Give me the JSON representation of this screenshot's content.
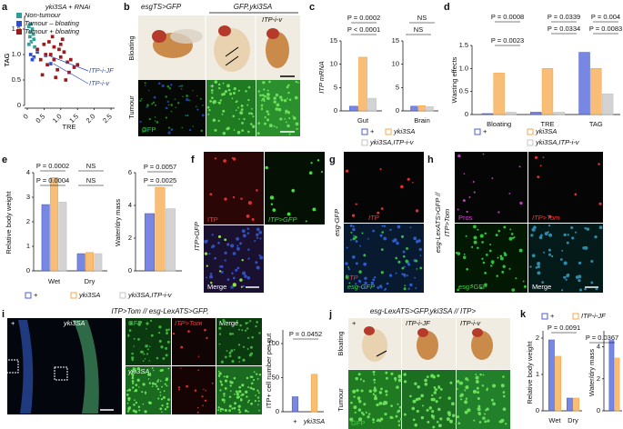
{
  "figure": {
    "letters": [
      "a",
      "b",
      "c",
      "d",
      "e",
      "f",
      "g",
      "h",
      "i",
      "j",
      "k"
    ],
    "b": {
      "geno1": "esgTS>GFP",
      "geno2": "GFP,yki3SA",
      "row1": "Bloating",
      "row2": "Tumour",
      "stain": "GFP",
      "col2": "+",
      "col3": "ITP-i-v"
    },
    "f": {
      "side": "ITP>GFP",
      "ch1": "ITP",
      "ch2": "ITP>GFP",
      "merge": "Merge"
    },
    "g": {
      "side": "esg-GFP",
      "ch1": "ITP",
      "ch2": "ITP",
      "ch3": "esg-GFP"
    },
    "h": {
      "side1": "esg-LexATS>GFP //",
      "side2": "ITP>Tom",
      "ch1": "Pros",
      "ch2": "ITP>Tom",
      "ch3": "esg>GFP",
      "merge": "Merge"
    },
    "i": {
      "title": "ITP>Tom // esg-LexATS>GFP,",
      "ctrl": "+",
      "geno": "yki3SA",
      "ch1": "GFP",
      "ch2": "ITP>Tom",
      "merge": "Merge",
      "geno2": "yki3SA"
    },
    "j": {
      "title": "esg-LexATS>GFP,yki3SA // ITP>",
      "col1": "+",
      "col2": "ITP-i-JF",
      "col3": "ITP-i-v",
      "row1": "Bloating",
      "row2": "Tumour",
      "stain": "GFP"
    }
  },
  "chart_data": [
    {
      "type": "scatter",
      "title": "yki3SA + RNAi",
      "xlabel": "TRE",
      "ylabel": "TAG",
      "xlim": [
        0,
        2.5
      ],
      "ylim": [
        0,
        1.75
      ],
      "xticks": [
        0,
        0.5,
        {
          "value": 1,
          "label": "1.0"
        },
        1.5,
        {
          "value": 2,
          "label": "2.0"
        },
        2.5
      ],
      "yticks": [
        0,
        0.5,
        {
          "value": 1,
          "label": "1.0"
        },
        1.5
      ],
      "annotations": [
        "ITP-i-JF",
        "ITP-i-v"
      ],
      "series": [
        {
          "name": "Non-tumour",
          "color": "#2f9e9a",
          "x": [
            0.05,
            0.1,
            0.08,
            0.15,
            0.12,
            0.2,
            0.1,
            0.18,
            0.05,
            0.22
          ],
          "values": [
            1.55,
            1.45,
            1.35,
            1.5,
            1.25,
            1.3,
            1.6,
            1.4,
            1.2,
            1.15
          ]
        },
        {
          "name": "Tumour – bloating",
          "color": "#2f4fc4",
          "x": [
            0.1,
            0.2,
            0.3,
            0.15,
            0.55,
            0.7
          ],
          "values": [
            1.0,
            0.95,
            1.05,
            0.9,
            0.98,
            0.82
          ]
        },
        {
          "name": "Tumour + bloating",
          "color": "#9c1a1a",
          "x": [
            0.3,
            0.4,
            0.5,
            0.6,
            0.7,
            0.8,
            0.9,
            1.0,
            1.1,
            1.2,
            1.3,
            1.4,
            0.45,
            0.65,
            0.85,
            1.05,
            1.25,
            0.55,
            0.75,
            0.95,
            1.15,
            1.5,
            1.0,
            0.8
          ],
          "values": [
            1.1,
            0.9,
            1.2,
            0.8,
            1.0,
            1.15,
            0.7,
            0.95,
            1.05,
            0.85,
            0.9,
            0.75,
            0.6,
            1.25,
            0.55,
            1.3,
            0.65,
            1.0,
            1.35,
            1.1,
            0.5,
            0.8,
            1.2,
            0.9
          ]
        }
      ]
    },
    {
      "type": "bar",
      "ylabel": "ITP mRNA",
      "categories": [
        "Gut"
      ],
      "ylim": [
        0,
        15
      ],
      "yticks": [
        0,
        5,
        10,
        15
      ],
      "annotations": [
        "P = 0.0002",
        "P < 0.0001"
      ],
      "series": [
        {
          "name": "+",
          "color": "#4a5fd8",
          "values": [
            1
          ]
        },
        {
          "name": "yki3SA",
          "color": "#f5a84a",
          "values": [
            11.5
          ]
        },
        {
          "name": "yki3SA,ITP-i-v",
          "color": "#c4c4c4",
          "values": [
            2.7
          ]
        }
      ]
    },
    {
      "type": "bar",
      "categories": [
        "Brain"
      ],
      "ylim": [
        0,
        15
      ],
      "yticks": [
        0,
        5,
        10,
        15
      ],
      "annotations": [
        "NS",
        "NS"
      ],
      "series": [
        {
          "color": "#4a5fd8",
          "values": [
            1
          ]
        },
        {
          "color": "#f5a84a",
          "values": [
            1.1
          ]
        },
        {
          "color": "#c4c4c4",
          "values": [
            0.9
          ]
        }
      ]
    },
    {
      "type": "bar",
      "ylabel": "Wasting effects",
      "categories": [
        "Bloating",
        "TRE",
        "TAG"
      ],
      "ylim": [
        0,
        1.5
      ],
      "yticks": [
        0,
        0.5,
        {
          "value": 1,
          "label": "1.0"
        },
        1.5
      ],
      "annotations": [
        "P = 0.0008",
        "P = 0.0023",
        "P = 0.0339",
        "P = 0.0334",
        "P = 0.004",
        "P = 0.0083"
      ],
      "series": [
        {
          "name": "+",
          "color": "#4a5fd8",
          "values": [
            0.02,
            0.05,
            1.35
          ]
        },
        {
          "name": "yki3SA",
          "color": "#f5a84a",
          "values": [
            0.9,
            1.0,
            1.0
          ]
        },
        {
          "name": "yki3SA,ITP-i-v",
          "color": "#c4c4c4",
          "values": [
            0.05,
            0.05,
            0.45
          ]
        }
      ]
    },
    {
      "type": "bar",
      "ylabel": "Relative body weight",
      "categories": [
        "Wet",
        "Dry"
      ],
      "ylim": [
        0,
        4
      ],
      "yticks": [
        0,
        1,
        2,
        3,
        4
      ],
      "annotations": [
        "P = 0.0002",
        "P = 0.0004",
        "NS",
        "NS"
      ],
      "series": [
        {
          "name": "+",
          "color": "#4a5fd8",
          "values": [
            2.7,
            0.7
          ]
        },
        {
          "name": "yki3SA",
          "color": "#f5a84a",
          "values": [
            3.8,
            0.75
          ]
        },
        {
          "name": "yki3SA,ITP-i-v",
          "color": "#c4c4c4",
          "values": [
            2.8,
            0.7
          ]
        }
      ]
    },
    {
      "type": "bar",
      "ylabel": "Water/dry mass",
      "categories": [
        null
      ],
      "ylim": [
        0,
        6
      ],
      "yticks": [
        0,
        2,
        4,
        6
      ],
      "annotations": [
        "P = 0.0057",
        "P = 0.0025"
      ],
      "series": [
        {
          "color": "#4a5fd8",
          "values": [
            3.5
          ]
        },
        {
          "color": "#f5a84a",
          "values": [
            5.1
          ]
        },
        {
          "color": "#c4c4c4",
          "values": [
            3.8
          ]
        }
      ]
    },
    {
      "type": "bar",
      "ylabel": "ITP+ cell number per gut",
      "categories": [
        "+",
        "yki3SA"
      ],
      "ylim": [
        0,
        120
      ],
      "yticks": [
        0,
        50,
        100
      ],
      "annotations": [
        "P = 0.0452"
      ],
      "series": [
        {
          "color": "#4a5fd8",
          "values": [
            22,
            null
          ]
        },
        {
          "color": "#f5a84a",
          "values": [
            null,
            55
          ]
        }
      ]
    },
    {
      "type": "bar",
      "ylabel": "Relative body weight",
      "categories": [
        "Wet",
        "Dry"
      ],
      "ylim": [
        0,
        2.2
      ],
      "yticks": [
        0,
        1,
        2
      ],
      "annotations": [
        "P = 0.0091"
      ],
      "series": [
        {
          "name": "+",
          "color": "#4a5fd8",
          "values": [
            1.95,
            0.35
          ]
        },
        {
          "name": "ITP-i-JF",
          "color": "#f5a84a",
          "values": [
            1.5,
            0.35
          ]
        }
      ]
    },
    {
      "type": "bar",
      "ylabel": "Water/dry mass",
      "categories": [
        null
      ],
      "ylim": [
        0,
        5
      ],
      "yticks": [
        0,
        2,
        4
      ],
      "annotations": [
        "P = 0.0367"
      ],
      "series": [
        {
          "color": "#4a5fd8",
          "values": [
            4.4
          ]
        },
        {
          "color": "#f5a84a",
          "values": [
            3.3
          ]
        }
      ]
    }
  ]
}
